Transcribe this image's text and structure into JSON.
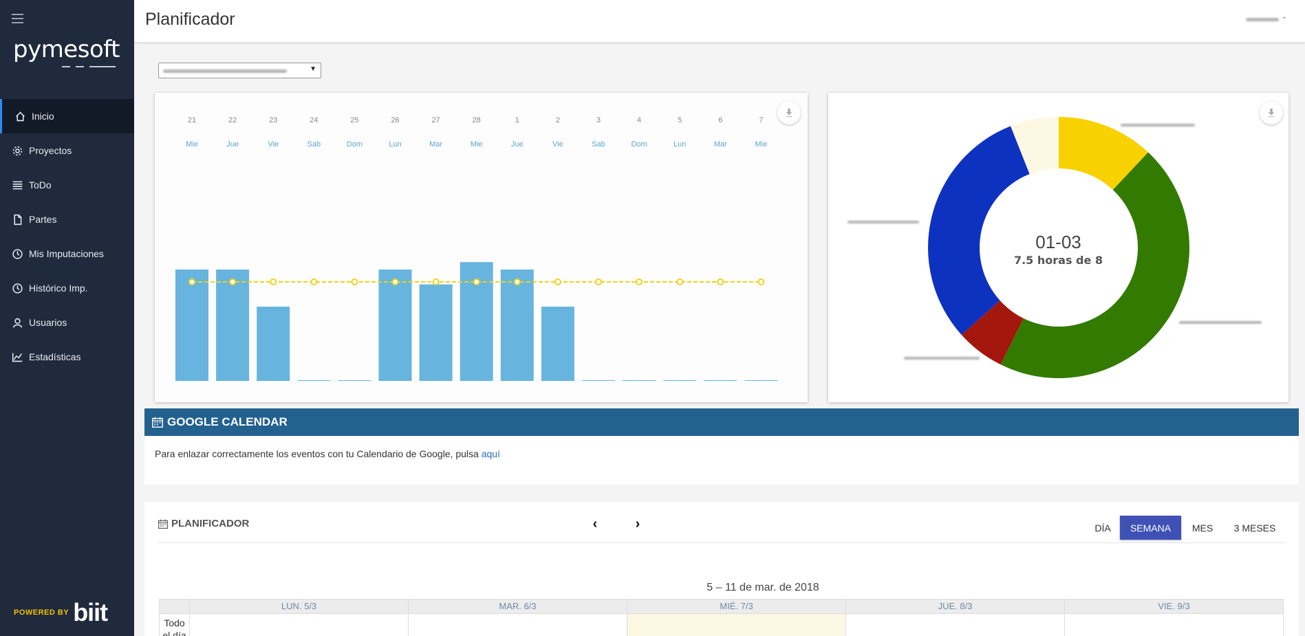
{
  "app": {
    "logo": "pymesoft",
    "powered_small": "POWERED BY",
    "powered_big": "biit"
  },
  "header": {
    "title": "Planificador"
  },
  "sidebar": {
    "items": [
      {
        "label": "Inicio",
        "icon": "home-icon"
      },
      {
        "label": "Proyectos",
        "icon": "gear-icon"
      },
      {
        "label": "ToDo",
        "icon": "list-icon"
      },
      {
        "label": "Partes",
        "icon": "file-icon"
      },
      {
        "label": "Mis Imputaciones",
        "icon": "clock-icon"
      },
      {
        "label": "Histórico Imp.",
        "icon": "history-icon"
      },
      {
        "label": "Usuarios",
        "icon": "user-icon"
      },
      {
        "label": "Estadísticas",
        "icon": "chart-icon"
      }
    ]
  },
  "chart_data": [
    {
      "type": "bar",
      "categories": [
        "21",
        "22",
        "23",
        "24",
        "25",
        "26",
        "27",
        "28",
        "1",
        "2",
        "3",
        "4",
        "5",
        "6",
        "7"
      ],
      "weekdays": [
        "Mie",
        "Jue",
        "Vie",
        "Sab",
        "Dom",
        "Lun",
        "Mar",
        "Mie",
        "Jue",
        "Vie",
        "Sab",
        "Dom",
        "Lun",
        "Mar",
        "Mie"
      ],
      "series": [
        {
          "type": "bar",
          "values": [
            9,
            9,
            6,
            0,
            0,
            9,
            7.8,
            9.6,
            9,
            6,
            0,
            0,
            0,
            0,
            0
          ],
          "color": "#67b5de"
        },
        {
          "type": "line",
          "values": [
            8,
            8,
            8,
            8,
            8,
            8,
            8,
            8,
            8,
            8,
            8,
            8,
            8,
            8,
            8
          ],
          "color": "#f2d21a"
        }
      ],
      "ylim": [
        0,
        16
      ]
    },
    {
      "type": "pie",
      "center_title": "01-03",
      "center_subtitle": "7.5 horas de 8",
      "slices": [
        {
          "value": 0.9,
          "color": "#f8d100"
        },
        {
          "value": 3.4,
          "color": "#337a00"
        },
        {
          "value": 0.45,
          "color": "#a3170c"
        },
        {
          "value": 2.3,
          "color": "#0e32c0"
        },
        {
          "value": 0.45,
          "color": "#fdf8e3"
        }
      ]
    }
  ],
  "google_calendar": {
    "title": "GOOGLE CALENDAR",
    "text": "Para enlazar correctamente los eventos con tu Calendario de Google, pulsa ",
    "link": "aquí"
  },
  "planner": {
    "title": "PLANIFICADOR",
    "prev": "‹",
    "next": "›",
    "views": [
      "DÍA",
      "SEMANA",
      "MES",
      "3 MESES"
    ],
    "range": "5 – 11 de mar. de 2018",
    "days": [
      "LUN. 5/3",
      "MAR. 6/3",
      "MIÉ. 7/3",
      "JUE. 8/3",
      "VIE. 9/3"
    ],
    "all_day": "Todo el día"
  }
}
